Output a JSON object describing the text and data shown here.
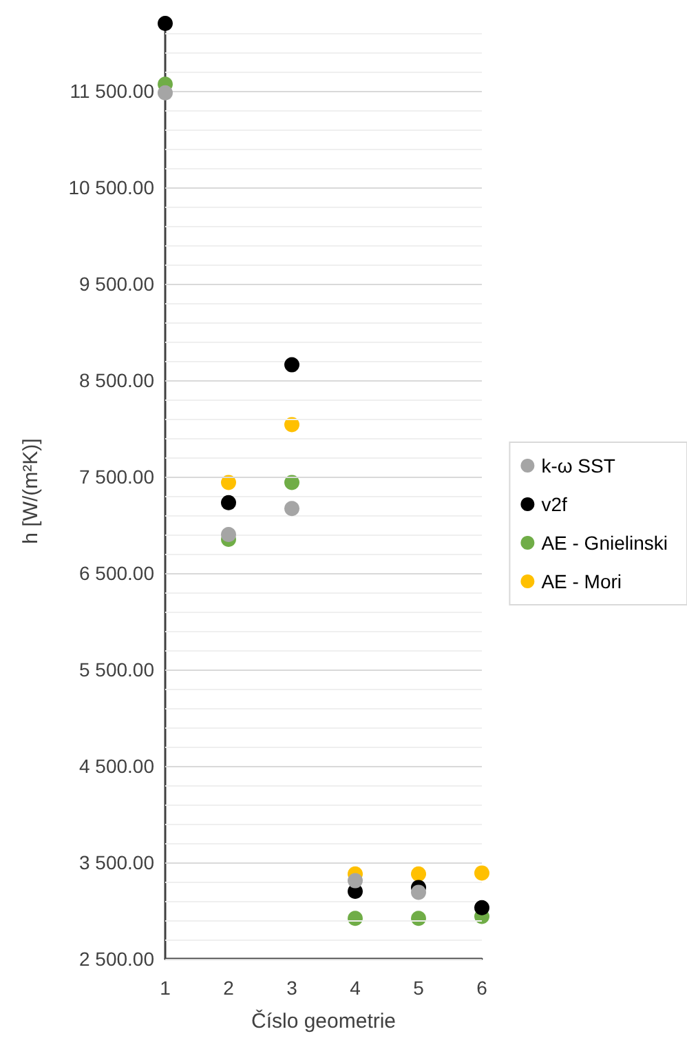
{
  "chart_data": {
    "type": "scatter",
    "xlabel": "Číslo geometrie",
    "ylabel": "h [W/(m²K)]",
    "x": [
      1,
      2,
      3,
      4,
      5,
      6
    ],
    "series": [
      {
        "name": "k-ω SST",
        "color": "#a5a5a5",
        "values": [
          11480,
          6900,
          7170,
          3310,
          3190,
          null
        ]
      },
      {
        "name": "v2f",
        "color": "#000000",
        "values": [
          12200,
          7230,
          8660,
          3200,
          3240,
          3030
        ]
      },
      {
        "name": "AE - Gnielinski",
        "color": "#70ad47",
        "values": [
          11570,
          6850,
          7440,
          2920,
          2920,
          2940
        ]
      },
      {
        "name": "AE - Mori",
        "color": "#ffc000",
        "values": [
          null,
          7440,
          8040,
          3380,
          3380,
          3390
        ]
      }
    ],
    "xlim": [
      1,
      6
    ],
    "xticks": [
      1,
      2,
      3,
      4,
      5,
      6
    ],
    "ylim": [
      2500,
      12200
    ],
    "yticks": [
      {
        "value": 2500,
        "label": "2 500.00"
      },
      {
        "value": 2700,
        "label": null
      },
      {
        "value": 2900,
        "label": null
      },
      {
        "value": 3100,
        "label": null
      },
      {
        "value": 3300,
        "label": null
      },
      {
        "value": 3500,
        "label": "3 500.00"
      },
      {
        "value": 3700,
        "label": null
      },
      {
        "value": 3900,
        "label": null
      },
      {
        "value": 4100,
        "label": null
      },
      {
        "value": 4300,
        "label": null
      },
      {
        "value": 4500,
        "label": "4 500.00"
      },
      {
        "value": 4700,
        "label": null
      },
      {
        "value": 4900,
        "label": null
      },
      {
        "value": 5100,
        "label": null
      },
      {
        "value": 5300,
        "label": null
      },
      {
        "value": 5500,
        "label": "5 500.00"
      },
      {
        "value": 5700,
        "label": null
      },
      {
        "value": 5900,
        "label": null
      },
      {
        "value": 6100,
        "label": null
      },
      {
        "value": 6300,
        "label": null
      },
      {
        "value": 6500,
        "label": "6 500.00"
      },
      {
        "value": 6700,
        "label": null
      },
      {
        "value": 6900,
        "label": null
      },
      {
        "value": 7100,
        "label": null
      },
      {
        "value": 7300,
        "label": null
      },
      {
        "value": 7500,
        "label": "7 500.00"
      },
      {
        "value": 7700,
        "label": null
      },
      {
        "value": 7900,
        "label": null
      },
      {
        "value": 8100,
        "label": null
      },
      {
        "value": 8300,
        "label": null
      },
      {
        "value": 8500,
        "label": "8 500.00"
      },
      {
        "value": 8700,
        "label": null
      },
      {
        "value": 8900,
        "label": null
      },
      {
        "value": 9100,
        "label": null
      },
      {
        "value": 9300,
        "label": null
      },
      {
        "value": 9500,
        "label": "9 500.00"
      },
      {
        "value": 9700,
        "label": null
      },
      {
        "value": 9900,
        "label": null
      },
      {
        "value": 10100,
        "label": null
      },
      {
        "value": 10300,
        "label": null
      },
      {
        "value": 10500,
        "label": "10 500.00"
      },
      {
        "value": 10700,
        "label": null
      },
      {
        "value": 10900,
        "label": null
      },
      {
        "value": 11100,
        "label": null
      },
      {
        "value": 11300,
        "label": null
      },
      {
        "value": 11500,
        "label": "11 500.00"
      },
      {
        "value": 11700,
        "label": null
      },
      {
        "value": 11900,
        "label": null
      },
      {
        "value": 12100,
        "label": null
      }
    ],
    "grid": "y",
    "legend": "right",
    "marker": "circle"
  }
}
